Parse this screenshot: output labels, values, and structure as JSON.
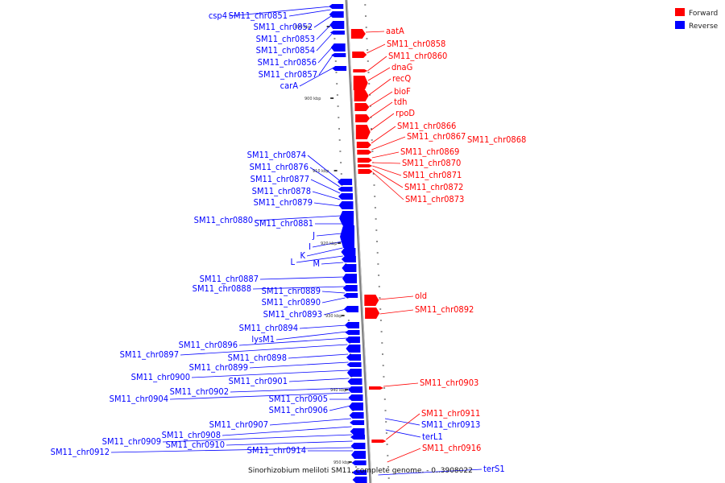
{
  "colors": {
    "forward": "#ff0000",
    "reverse": "#0000ff",
    "backbone": "#7f7f7f",
    "tick": "#222222"
  },
  "legend": {
    "forward": "Forward",
    "reverse": "Reverse"
  },
  "caption": "Sinorhizobium meliloti SM11, complete genome. - 0..3908022",
  "kbp_labels": [
    "899 kbp",
    "900 kbp",
    "910 kbp",
    "920 kbp",
    "930 kbp",
    "940 kbp",
    "950 kbp"
  ],
  "reverse_genes": [
    "csp4",
    "SM11_chr0851",
    "SM11_chr0852",
    "SM11_chr0853",
    "SM11_chr0854",
    "SM11_chr0856",
    "SM11_chr0857",
    "carA",
    "SM11_chr0874",
    "SM11_chr0876",
    "SM11_chr0877",
    "SM11_chr0878",
    "SM11_chr0879",
    "SM11_chr0880",
    "SM11_chr0881",
    "J",
    "I",
    "K",
    "L",
    "M",
    "SM11_chr0887",
    "SM11_chr0888",
    "SM11_chr0889",
    "SM11_chr0890",
    "SM11_chr0893",
    "SM11_chr0894",
    "lysM1",
    "SM11_chr0896",
    "SM11_chr0897",
    "SM11_chr0898",
    "SM11_chr0899",
    "SM11_chr0900",
    "SM11_chr0901",
    "SM11_chr0902",
    "SM11_chr0904",
    "SM11_chr0905",
    "SM11_chr0906",
    "SM11_chr0907",
    "SM11_chr0908",
    "SM11_chr0909",
    "SM11_chr0910",
    "SM11_chr0912",
    "SM11_chr0914",
    "SM11_chr0913",
    "terL1",
    "terS1"
  ],
  "forward_genes": [
    "aatA",
    "SM11_chr0858",
    "SM11_chr0860",
    "dnaG",
    "recQ",
    "bioF",
    "tdh",
    "rpoD",
    "SM11_chr0866",
    "SM11_chr0867",
    "SM11_chr0868",
    "SM11_chr0869",
    "SM11_chr0870",
    "SM11_chr0871",
    "SM11_chr0872",
    "SM11_chr0873",
    "old",
    "SM11_chr0892",
    "SM11_chr0903",
    "SM11_chr0911",
    "SM11_chr0916"
  ]
}
